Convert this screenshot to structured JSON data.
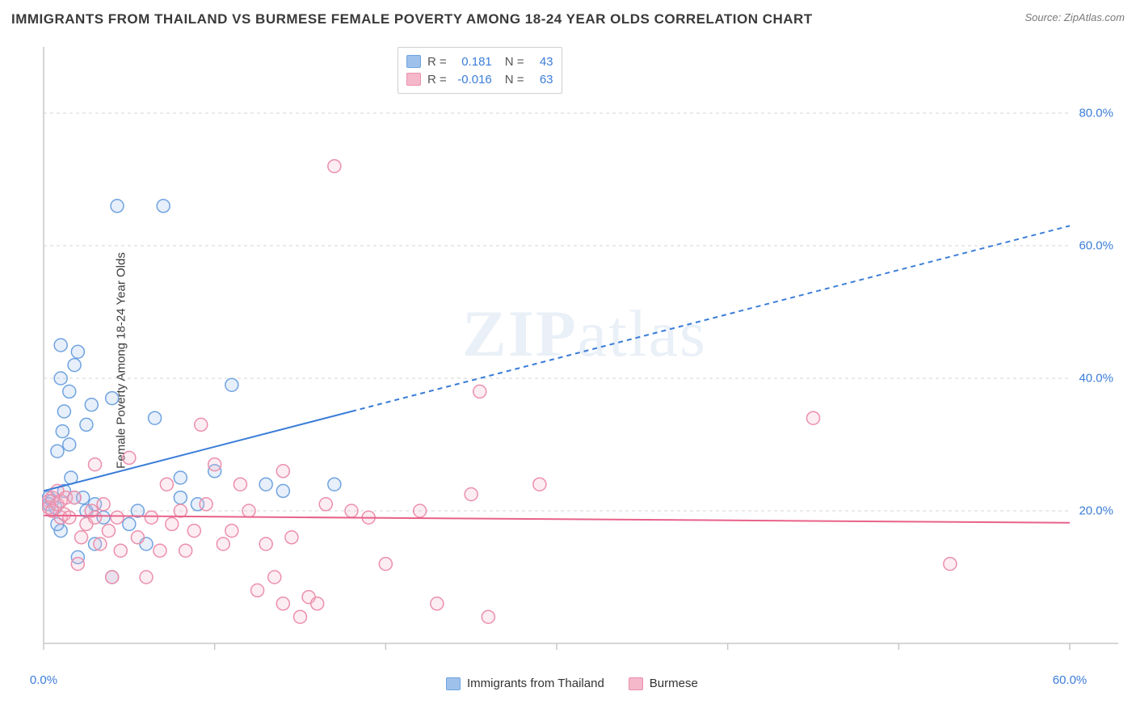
{
  "title": "IMMIGRANTS FROM THAILAND VS BURMESE FEMALE POVERTY AMONG 18-24 YEAR OLDS CORRELATION CHART",
  "source_prefix": "Source: ",
  "source_name": "ZipAtlas.com",
  "ylabel": "Female Poverty Among 18-24 Year Olds",
  "watermark": "ZIPatlas",
  "chart": {
    "type": "scatter",
    "background_color": "#ffffff",
    "axis_color": "#c9c9c9",
    "grid_color": "#d4d4d4",
    "grid_dash": "4 4",
    "xlim": [
      0,
      60
    ],
    "ylim": [
      0,
      90
    ],
    "xticks_minor": [
      0,
      10,
      20,
      30,
      40,
      50,
      60
    ],
    "xtick_labels": [
      {
        "v": 0,
        "label": "0.0%",
        "color": "#3b7dd8"
      },
      {
        "v": 60,
        "label": "60.0%",
        "color": "#3b7dd8"
      }
    ],
    "ytick_labels": [
      {
        "v": 20,
        "label": "20.0%",
        "color": "#3b7dd8"
      },
      {
        "v": 40,
        "label": "40.0%",
        "color": "#3b7dd8"
      },
      {
        "v": 60,
        "label": "60.0%",
        "color": "#3b7dd8"
      },
      {
        "v": 80,
        "label": "80.0%",
        "color": "#3b7dd8"
      }
    ],
    "marker_radius": 8,
    "marker_stroke_width": 1.5,
    "marker_fill_opacity": 0.25,
    "series": [
      {
        "name": "Immigrants from Thailand",
        "color": "#3b7dd8",
        "fill": "#9ec1ec",
        "stroke": "#6fa3e0",
        "r": 0.181,
        "n": 43,
        "trend_line": {
          "x0": 0,
          "y0": 23,
          "x1": 60,
          "y1": 63,
          "solid_until_x": 18,
          "width": 2
        },
        "points": [
          [
            0.3,
            22
          ],
          [
            0.3,
            21
          ],
          [
            0.5,
            20
          ],
          [
            0.5,
            21.5
          ],
          [
            0.8,
            29
          ],
          [
            0.7,
            20.5
          ],
          [
            1,
            40
          ],
          [
            1,
            45
          ],
          [
            1.2,
            23
          ],
          [
            1.2,
            35
          ],
          [
            1.5,
            38
          ],
          [
            1.5,
            30
          ],
          [
            1.8,
            42
          ],
          [
            1.8,
            22
          ],
          [
            2,
            44
          ],
          [
            2,
            13
          ],
          [
            2.3,
            22
          ],
          [
            2.5,
            33
          ],
          [
            2.5,
            20
          ],
          [
            2.8,
            36
          ],
          [
            3,
            21
          ],
          [
            3,
            15
          ],
          [
            3.5,
            19
          ],
          [
            4,
            37
          ],
          [
            4,
            10
          ],
          [
            4.3,
            66
          ],
          [
            5,
            18
          ],
          [
            5.5,
            20
          ],
          [
            6,
            15
          ],
          [
            6.5,
            34
          ],
          [
            7,
            66
          ],
          [
            8,
            22
          ],
          [
            8,
            25
          ],
          [
            9,
            21
          ],
          [
            10,
            26
          ],
          [
            11,
            39
          ],
          [
            13,
            24
          ],
          [
            14,
            23
          ],
          [
            17,
            24
          ],
          [
            1,
            17
          ],
          [
            1.6,
            25
          ],
          [
            0.8,
            18
          ],
          [
            1.1,
            32
          ]
        ]
      },
      {
        "name": "Burmese",
        "color": "#e8628a",
        "fill": "#f5b8ca",
        "stroke": "#ec8fab",
        "r": -0.016,
        "n": 63,
        "trend_line": {
          "x0": 0,
          "y0": 19.3,
          "x1": 60,
          "y1": 18.2,
          "solid_until_x": 60,
          "width": 2
        },
        "points": [
          [
            0.3,
            21.5
          ],
          [
            0.3,
            20.5
          ],
          [
            0.5,
            22
          ],
          [
            0.5,
            20
          ],
          [
            0.8,
            21
          ],
          [
            0.8,
            23
          ],
          [
            1,
            19
          ],
          [
            1,
            21.5
          ],
          [
            1.2,
            19.5
          ],
          [
            1.3,
            22
          ],
          [
            1.5,
            19
          ],
          [
            1.8,
            22
          ],
          [
            2,
            12
          ],
          [
            2.2,
            16
          ],
          [
            2.5,
            18
          ],
          [
            2.8,
            20
          ],
          [
            3,
            19
          ],
          [
            3.3,
            15
          ],
          [
            3.5,
            21
          ],
          [
            3.8,
            17
          ],
          [
            4,
            10
          ],
          [
            4.3,
            19
          ],
          [
            4.5,
            14
          ],
          [
            5,
            28
          ],
          [
            5.5,
            16
          ],
          [
            6,
            10
          ],
          [
            6.3,
            19
          ],
          [
            6.8,
            14
          ],
          [
            7.2,
            24
          ],
          [
            7.5,
            18
          ],
          [
            8,
            20
          ],
          [
            8.3,
            14
          ],
          [
            8.8,
            17
          ],
          [
            9.2,
            33
          ],
          [
            9.5,
            21
          ],
          [
            10,
            27
          ],
          [
            10.5,
            15
          ],
          [
            11,
            17
          ],
          [
            11.5,
            24
          ],
          [
            12,
            20
          ],
          [
            12.5,
            8
          ],
          [
            13,
            15
          ],
          [
            13.5,
            10
          ],
          [
            14,
            6
          ],
          [
            14.5,
            16
          ],
          [
            15,
            4
          ],
          [
            15.5,
            7
          ],
          [
            16,
            6
          ],
          [
            16.5,
            21
          ],
          [
            17,
            72
          ],
          [
            18,
            20
          ],
          [
            19,
            19
          ],
          [
            20,
            12
          ],
          [
            22,
            20
          ],
          [
            23,
            6
          ],
          [
            25,
            22.5
          ],
          [
            25.5,
            38
          ],
          [
            26,
            4
          ],
          [
            29,
            24
          ],
          [
            45,
            34
          ],
          [
            53,
            12
          ],
          [
            14,
            26
          ],
          [
            3,
            27
          ]
        ]
      }
    ]
  },
  "stat_legend": {
    "R_label": "R =",
    "N_label": "N ="
  },
  "bottom_legend_items": [
    {
      "label": "Immigrants from Thailand",
      "fill": "#9ec1ec",
      "stroke": "#6fa3e0"
    },
    {
      "label": "Burmese",
      "fill": "#f5b8ca",
      "stroke": "#ec8fab"
    }
  ]
}
